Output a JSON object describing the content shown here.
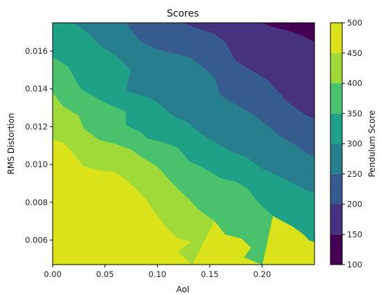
{
  "chart_data": {
    "type": "heatmap",
    "subtype": "filled-contour",
    "title": "Scores",
    "xlabel": "AoI",
    "ylabel": "RMS Distortion",
    "xlim": [
      0.0,
      0.25
    ],
    "ylim": [
      0.0047,
      0.0175
    ],
    "x_ticks": [
      "0.00",
      "0.05",
      "0.10",
      "0.15",
      "0.20"
    ],
    "y_ticks": [
      "0.006",
      "0.008",
      "0.010",
      "0.012",
      "0.014",
      "0.016"
    ],
    "colorbar": {
      "label": "Pendulum Score",
      "ticks": [
        "100",
        "150",
        "200",
        "250",
        "300",
        "350",
        "400",
        "450",
        "500"
      ],
      "levels": [
        100,
        150,
        200,
        250,
        300,
        350,
        400,
        450,
        500
      ],
      "colors": [
        "#440154",
        "#46327e",
        "#365c8d",
        "#277f8e",
        "#1fa187",
        "#4ac16d",
        "#a0da39",
        "#dae319"
      ]
    },
    "boundaries": [
      {
        "level": 450,
        "points": [
          [
            0.0,
            0.0113
          ],
          [
            0.01,
            0.0112
          ],
          [
            0.02,
            0.0106
          ],
          [
            0.03,
            0.0099
          ],
          [
            0.045,
            0.0097
          ],
          [
            0.06,
            0.0096
          ],
          [
            0.07,
            0.0092
          ],
          [
            0.08,
            0.0087
          ],
          [
            0.09,
            0.0081
          ],
          [
            0.1,
            0.0073
          ],
          [
            0.11,
            0.0066
          ],
          [
            0.12,
            0.0061
          ],
          [
            0.133,
            0.0059
          ],
          [
            0.12,
            0.0054
          ],
          [
            0.133,
            0.0047
          ]
        ]
      },
      {
        "level": 400,
        "points": [
          [
            0.0,
            0.0138
          ],
          [
            0.01,
            0.0131
          ],
          [
            0.025,
            0.0126
          ],
          [
            0.03,
            0.0119
          ],
          [
            0.045,
            0.0113
          ],
          [
            0.06,
            0.0111
          ],
          [
            0.075,
            0.0108
          ],
          [
            0.085,
            0.0104
          ],
          [
            0.1,
            0.0099
          ],
          [
            0.11,
            0.0093
          ],
          [
            0.12,
            0.0087
          ],
          [
            0.13,
            0.0082
          ],
          [
            0.14,
            0.0076
          ],
          [
            0.155,
            0.007
          ],
          [
            0.165,
            0.0063
          ],
          [
            0.18,
            0.0061
          ],
          [
            0.19,
            0.0056
          ],
          [
            0.183,
            0.0051
          ],
          [
            0.2,
            0.0047
          ]
        ]
      },
      {
        "level": 350,
        "points": [
          [
            0.0,
            0.0157
          ],
          [
            0.015,
            0.0152
          ],
          [
            0.02,
            0.0147
          ],
          [
            0.025,
            0.0142
          ],
          [
            0.03,
            0.0139
          ],
          [
            0.05,
            0.0133
          ],
          [
            0.07,
            0.0128
          ],
          [
            0.07,
            0.0121
          ],
          [
            0.085,
            0.0117
          ],
          [
            0.09,
            0.0114
          ],
          [
            0.105,
            0.0112
          ],
          [
            0.12,
            0.0109
          ],
          [
            0.13,
            0.0102
          ],
          [
            0.145,
            0.0098
          ],
          [
            0.16,
            0.0093
          ],
          [
            0.175,
            0.0091
          ],
          [
            0.185,
            0.0088
          ],
          [
            0.195,
            0.0081
          ],
          [
            0.21,
            0.0073
          ],
          [
            0.23,
            0.0067
          ],
          [
            0.24,
            0.0063
          ],
          [
            0.245,
            0.006
          ],
          [
            0.25,
            0.0059
          ]
        ]
      },
      {
        "level": 300,
        "points": [
          [
            0.02,
            0.0175
          ],
          [
            0.035,
            0.0169
          ],
          [
            0.045,
            0.0163
          ],
          [
            0.06,
            0.0158
          ],
          [
            0.075,
            0.015
          ],
          [
            0.07,
            0.0139
          ],
          [
            0.09,
            0.0136
          ],
          [
            0.1,
            0.0133
          ],
          [
            0.115,
            0.0126
          ],
          [
            0.13,
            0.0122
          ],
          [
            0.14,
            0.0117
          ],
          [
            0.155,
            0.0112
          ],
          [
            0.17,
            0.0107
          ],
          [
            0.185,
            0.0104
          ],
          [
            0.2,
            0.0098
          ],
          [
            0.215,
            0.0094
          ],
          [
            0.23,
            0.009
          ],
          [
            0.24,
            0.0087
          ],
          [
            0.25,
            0.0085
          ]
        ]
      },
      {
        "level": 250,
        "points": [
          [
            0.07,
            0.0175
          ],
          [
            0.08,
            0.0168
          ],
          [
            0.085,
            0.0165
          ],
          [
            0.1,
            0.0161
          ],
          [
            0.115,
            0.0159
          ],
          [
            0.13,
            0.0157
          ],
          [
            0.145,
            0.0151
          ],
          [
            0.155,
            0.0146
          ],
          [
            0.16,
            0.0137
          ],
          [
            0.175,
            0.0132
          ],
          [
            0.19,
            0.0127
          ],
          [
            0.205,
            0.0121
          ],
          [
            0.215,
            0.0116
          ],
          [
            0.23,
            0.0111
          ],
          [
            0.24,
            0.0107
          ],
          [
            0.25,
            0.0104
          ]
        ]
      },
      {
        "level": 200,
        "points": [
          [
            0.125,
            0.0175
          ],
          [
            0.14,
            0.0172
          ],
          [
            0.155,
            0.0169
          ],
          [
            0.165,
            0.0165
          ],
          [
            0.17,
            0.016
          ],
          [
            0.175,
            0.0155
          ],
          [
            0.19,
            0.015
          ],
          [
            0.205,
            0.0145
          ],
          [
            0.215,
            0.0139
          ],
          [
            0.225,
            0.0133
          ],
          [
            0.24,
            0.0127
          ],
          [
            0.25,
            0.0124
          ]
        ]
      },
      {
        "level": 150,
        "points": [
          [
            0.2,
            0.0175
          ],
          [
            0.21,
            0.0173
          ],
          [
            0.225,
            0.0171
          ],
          [
            0.24,
            0.0168
          ],
          [
            0.25,
            0.0165
          ]
        ]
      }
    ]
  }
}
